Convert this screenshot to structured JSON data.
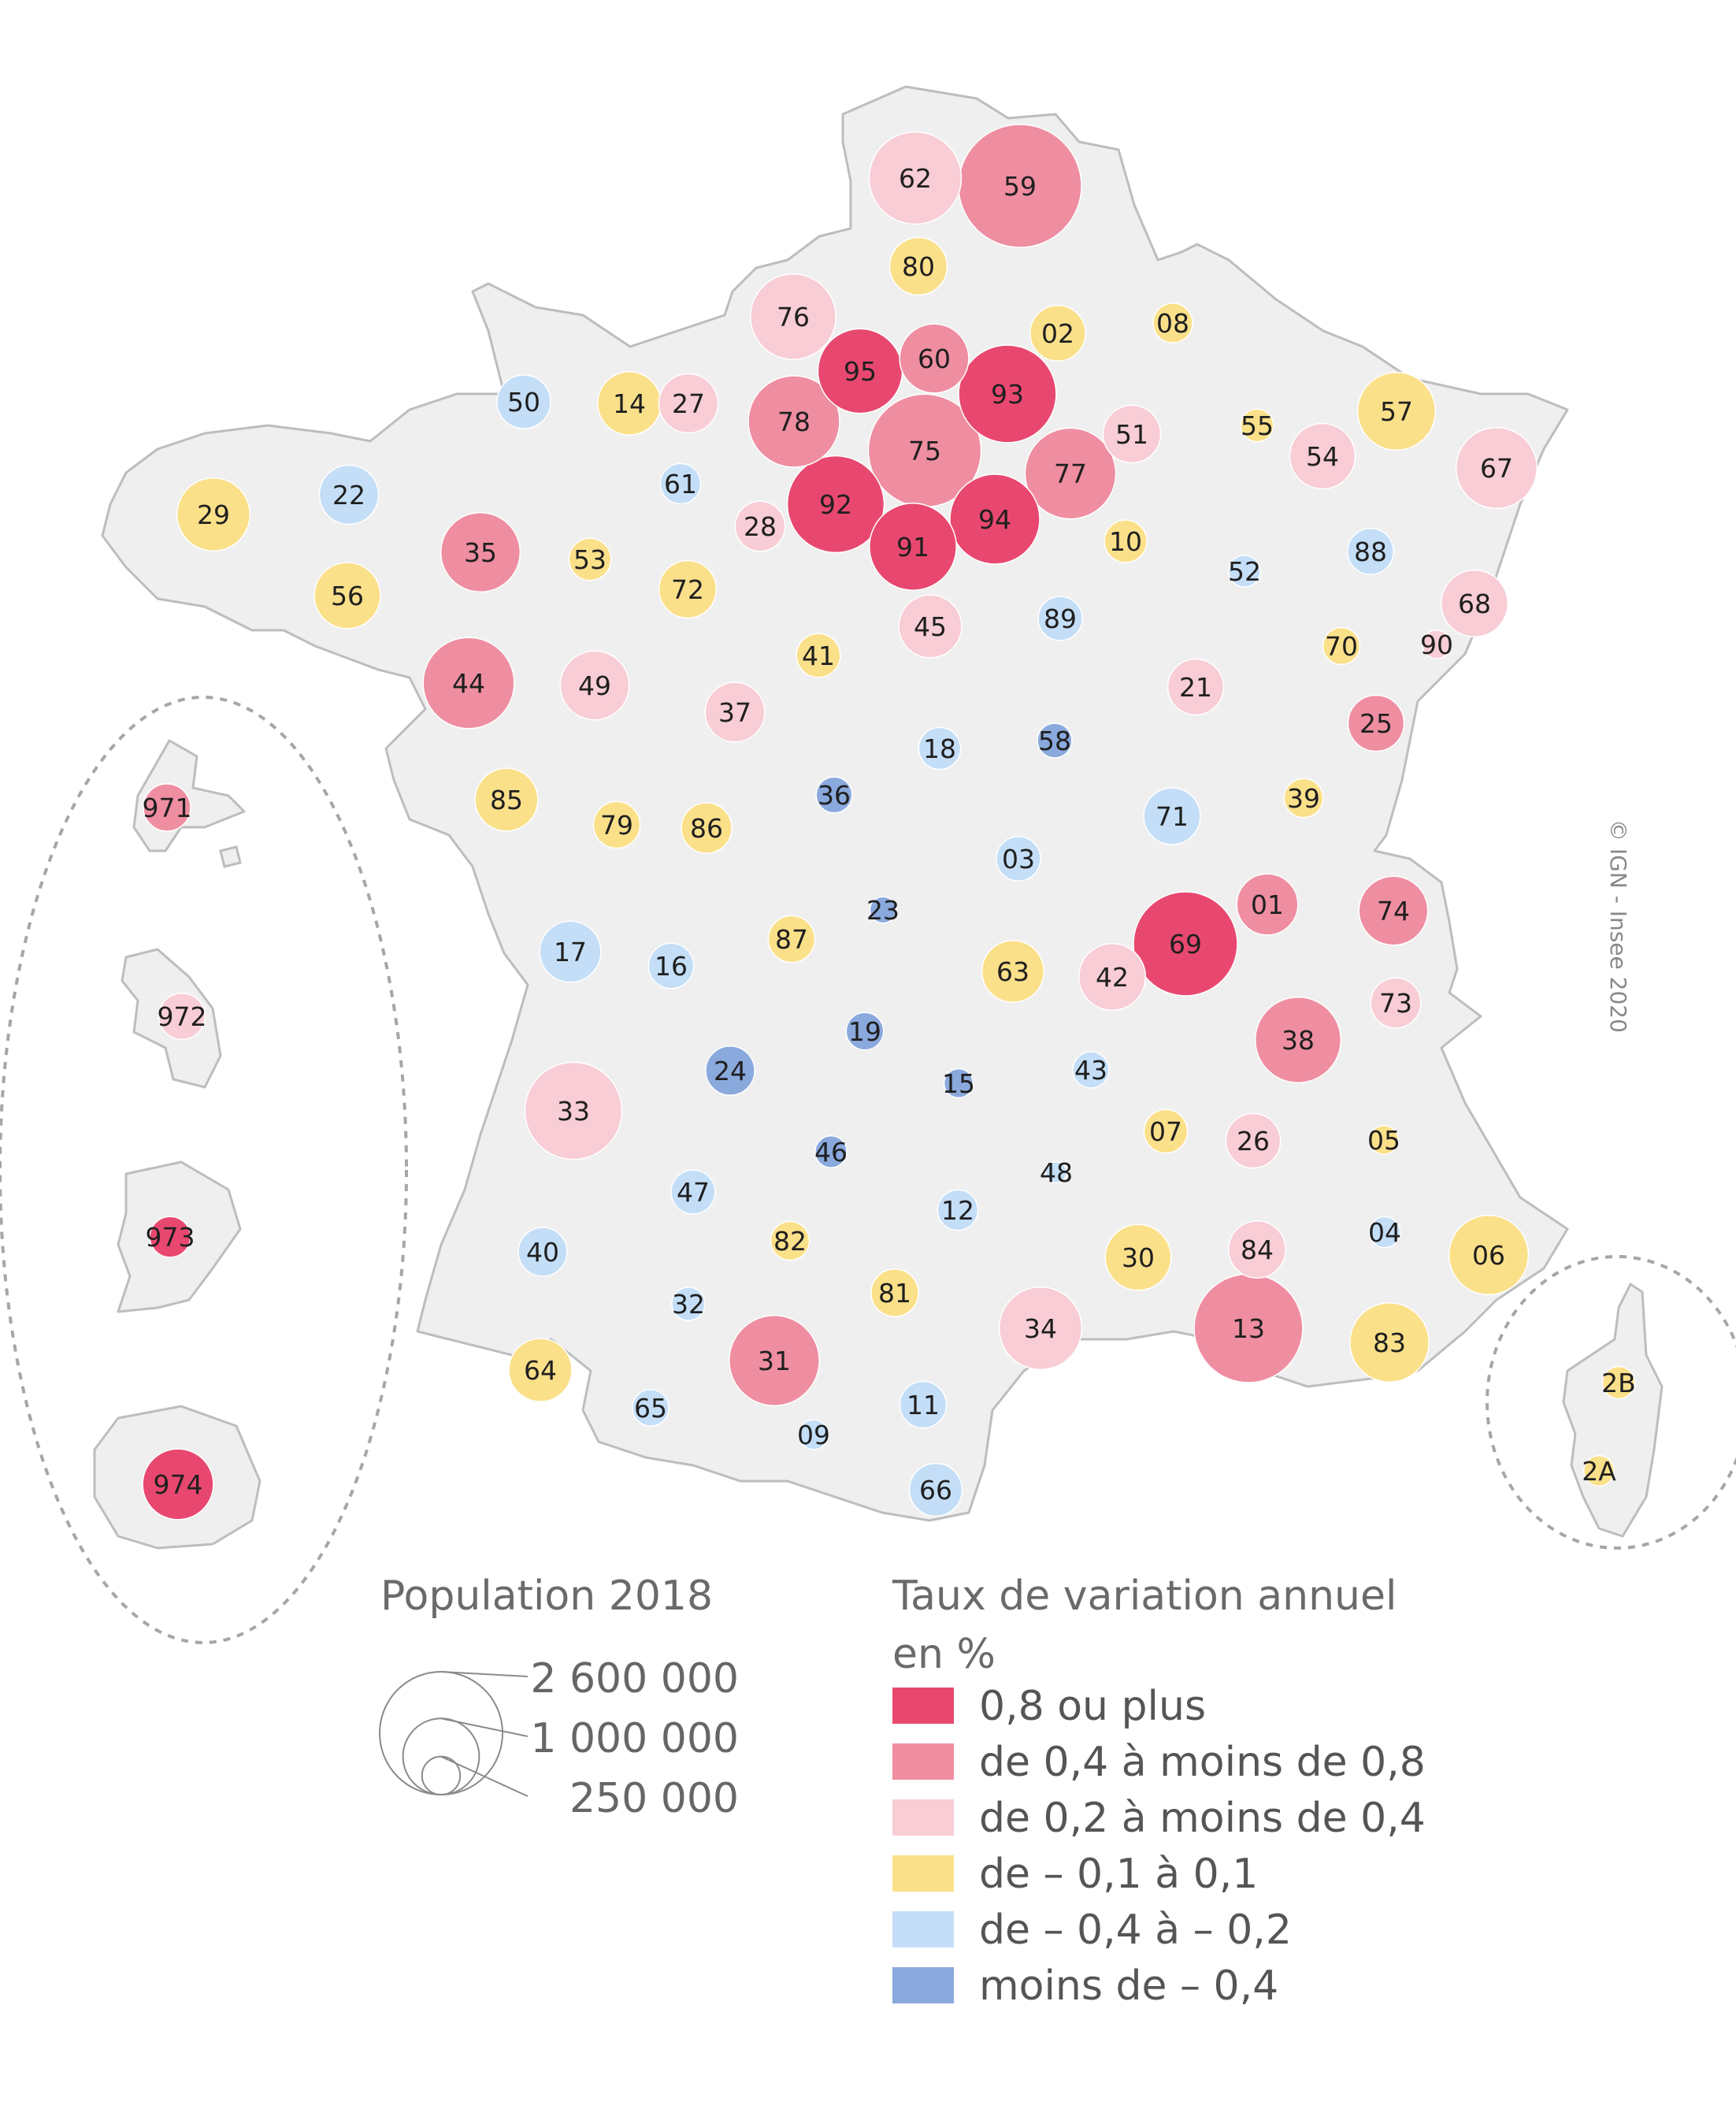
{
  "copyright": "© IGN - Insee 2020",
  "colors": {
    "c1": "#e8486f",
    "c2": "#ef8ea1",
    "c3": "#f8cdd6",
    "c4": "#fbe08a",
    "c5": "#c4def7",
    "c6": "#8aa9dd",
    "land": "#efefef",
    "border": "#bdbdbd"
  },
  "size_legend": {
    "title": "Population 2018",
    "items": [
      {
        "label": "2 600 000",
        "population": 2600000
      },
      {
        "label": "1 000 000",
        "population": 1000000
      },
      {
        "label": "250 000",
        "population": 250000
      }
    ]
  },
  "color_legend": {
    "title_line1": "Taux de variation annuel",
    "title_line2": "en %",
    "classes": [
      {
        "key": "c1",
        "label": "0,8 ou plus"
      },
      {
        "key": "c2",
        "label": "de 0,4 à moins de 0,8"
      },
      {
        "key": "c3",
        "label": "de 0,2 à moins de 0,4"
      },
      {
        "key": "c4",
        "label": "de – 0,1 à 0,1"
      },
      {
        "key": "c5",
        "label": "de – 0,4 à  – 0,2"
      },
      {
        "key": "c6",
        "label": "moins de – 0,4"
      }
    ]
  },
  "departments": [
    {
      "code": "62",
      "cls": "c3",
      "pop": 1465000
    },
    {
      "code": "59",
      "cls": "c2",
      "pop": 2600000
    },
    {
      "code": "80",
      "cls": "c4",
      "pop": 570000
    },
    {
      "code": "76",
      "cls": "c3",
      "pop": 1255000
    },
    {
      "code": "02",
      "cls": "c4",
      "pop": 530000
    },
    {
      "code": "08",
      "cls": "c4",
      "pop": 270000
    },
    {
      "code": "95",
      "cls": "c1",
      "pop": 1230000
    },
    {
      "code": "60",
      "cls": "c2",
      "pop": 825000
    },
    {
      "code": "93",
      "cls": "c1",
      "pop": 1640000
    },
    {
      "code": "50",
      "cls": "c5",
      "pop": 495000
    },
    {
      "code": "14",
      "cls": "c4",
      "pop": 690000
    },
    {
      "code": "27",
      "cls": "c3",
      "pop": 600000
    },
    {
      "code": "78",
      "cls": "c2",
      "pop": 1440000
    },
    {
      "code": "75",
      "cls": "c2",
      "pop": 2190000
    },
    {
      "code": "51",
      "cls": "c3",
      "pop": 570000
    },
    {
      "code": "55",
      "cls": "c4",
      "pop": 185000
    },
    {
      "code": "57",
      "cls": "c4",
      "pop": 1045000
    },
    {
      "code": "54",
      "cls": "c3",
      "pop": 735000
    },
    {
      "code": "67",
      "cls": "c3",
      "pop": 1125000
    },
    {
      "code": "29",
      "cls": "c4",
      "pop": 915000
    },
    {
      "code": "22",
      "cls": "c5",
      "pop": 600000
    },
    {
      "code": "61",
      "cls": "c5",
      "pop": 280000
    },
    {
      "code": "77",
      "cls": "c2",
      "pop": 1420000
    },
    {
      "code": "35",
      "cls": "c2",
      "pop": 1080000
    },
    {
      "code": "53",
      "cls": "c4",
      "pop": 305000
    },
    {
      "code": "28",
      "cls": "c3",
      "pop": 430000
    },
    {
      "code": "92",
      "cls": "c1",
      "pop": 1610000
    },
    {
      "code": "94",
      "cls": "c1",
      "pop": 1390000
    },
    {
      "code": "91",
      "cls": "c1",
      "pop": 1300000
    },
    {
      "code": "10",
      "cls": "c4",
      "pop": 310000
    },
    {
      "code": "88",
      "cls": "c5",
      "pop": 365000
    },
    {
      "code": "56",
      "cls": "c4",
      "pop": 755000
    },
    {
      "code": "72",
      "cls": "c4",
      "pop": 565000
    },
    {
      "code": "52",
      "cls": "c5",
      "pop": 172000
    },
    {
      "code": "68",
      "cls": "c3",
      "pop": 765000
    },
    {
      "code": "45",
      "cls": "c3",
      "pop": 680000
    },
    {
      "code": "89",
      "cls": "c5",
      "pop": 335000
    },
    {
      "code": "41",
      "cls": "c4",
      "pop": 330000
    },
    {
      "code": "70",
      "cls": "c4",
      "pop": 235000
    },
    {
      "code": "90",
      "cls": "c3",
      "pop": 140000
    },
    {
      "code": "44",
      "cls": "c2",
      "pop": 1430000
    },
    {
      "code": "49",
      "cls": "c3",
      "pop": 815000
    },
    {
      "code": "21",
      "cls": "c3",
      "pop": 535000
    },
    {
      "code": "37",
      "cls": "c3",
      "pop": 610000
    },
    {
      "code": "25",
      "cls": "c2",
      "pop": 540000
    },
    {
      "code": "18",
      "cls": "c5",
      "pop": 302000
    },
    {
      "code": "58",
      "cls": "c6",
      "pop": 205000
    },
    {
      "code": "36",
      "cls": "c6",
      "pop": 222000
    },
    {
      "code": "85",
      "cls": "c4",
      "pop": 680000
    },
    {
      "code": "79",
      "cls": "c4",
      "pop": 375000
    },
    {
      "code": "86",
      "cls": "c4",
      "pop": 438000
    },
    {
      "code": "71",
      "cls": "c5",
      "pop": 552000
    },
    {
      "code": "39",
      "cls": "c4",
      "pop": 260000
    },
    {
      "code": "03",
      "cls": "c5",
      "pop": 337000
    },
    {
      "code": "01",
      "cls": "c2",
      "pop": 645000
    },
    {
      "code": "74",
      "cls": "c2",
      "pop": 815000
    },
    {
      "code": "23",
      "cls": "c6",
      "pop": 118000
    },
    {
      "code": "69",
      "cls": "c1",
      "pop": 1860000
    },
    {
      "code": "17",
      "cls": "c5",
      "pop": 645000
    },
    {
      "code": "16",
      "cls": "c5",
      "pop": 353000
    },
    {
      "code": "87",
      "cls": "c4",
      "pop": 375000
    },
    {
      "code": "63",
      "cls": "c4",
      "pop": 660000
    },
    {
      "code": "42",
      "cls": "c3",
      "pop": 763000
    },
    {
      "code": "73",
      "cls": "c3",
      "pop": 432000
    },
    {
      "code": "38",
      "cls": "c2",
      "pop": 1260000
    },
    {
      "code": "19",
      "cls": "c6",
      "pop": 241000
    },
    {
      "code": "24",
      "cls": "c6",
      "pop": 414000
    },
    {
      "code": "15",
      "cls": "c6",
      "pop": 145000
    },
    {
      "code": "43",
      "cls": "c5",
      "pop": 227000
    },
    {
      "code": "33",
      "cls": "c3",
      "pop": 1620000
    },
    {
      "code": "07",
      "cls": "c4",
      "pop": 326000
    },
    {
      "code": "26",
      "cls": "c3",
      "pop": 512000
    },
    {
      "code": "05",
      "cls": "c4",
      "pop": 141000
    },
    {
      "code": "46",
      "cls": "c6",
      "pop": 174000
    },
    {
      "code": "47",
      "cls": "c5",
      "pop": 332000
    },
    {
      "code": "48",
      "cls": "c5",
      "pop": 76000
    },
    {
      "code": "12",
      "cls": "c5",
      "pop": 279000
    },
    {
      "code": "04",
      "cls": "c5",
      "pop": 164000
    },
    {
      "code": "40",
      "cls": "c5",
      "pop": 409000
    },
    {
      "code": "82",
      "cls": "c4",
      "pop": 259000
    },
    {
      "code": "30",
      "cls": "c4",
      "pop": 745000
    },
    {
      "code": "84",
      "cls": "c3",
      "pop": 560000
    },
    {
      "code": "06",
      "cls": "c4",
      "pop": 1085000
    },
    {
      "code": "81",
      "cls": "c4",
      "pop": 388000
    },
    {
      "code": "32",
      "cls": "c5",
      "pop": 191000
    },
    {
      "code": "34",
      "cls": "c3",
      "pop": 1175000
    },
    {
      "code": "13",
      "cls": "c2",
      "pop": 2030000
    },
    {
      "code": "83",
      "cls": "c4",
      "pop": 1075000
    },
    {
      "code": "31",
      "cls": "c2",
      "pop": 1400000
    },
    {
      "code": "64",
      "cls": "c4",
      "pop": 683000
    },
    {
      "code": "65",
      "cls": "c5",
      "pop": 229000
    },
    {
      "code": "11",
      "cls": "c5",
      "pop": 372000
    },
    {
      "code": "09",
      "cls": "c5",
      "pop": 153000
    },
    {
      "code": "66",
      "cls": "c5",
      "pop": 479000
    },
    {
      "code": "2B",
      "cls": "c4",
      "pop": 180000
    },
    {
      "code": "2A",
      "cls": "c4",
      "pop": 160000
    },
    {
      "code": "971",
      "cls": "c2",
      "pop": 385000
    },
    {
      "code": "972",
      "cls": "c3",
      "pop": 368000
    },
    {
      "code": "973",
      "cls": "c1",
      "pop": 285000
    },
    {
      "code": "974",
      "cls": "c1",
      "pop": 860000
    }
  ]
}
